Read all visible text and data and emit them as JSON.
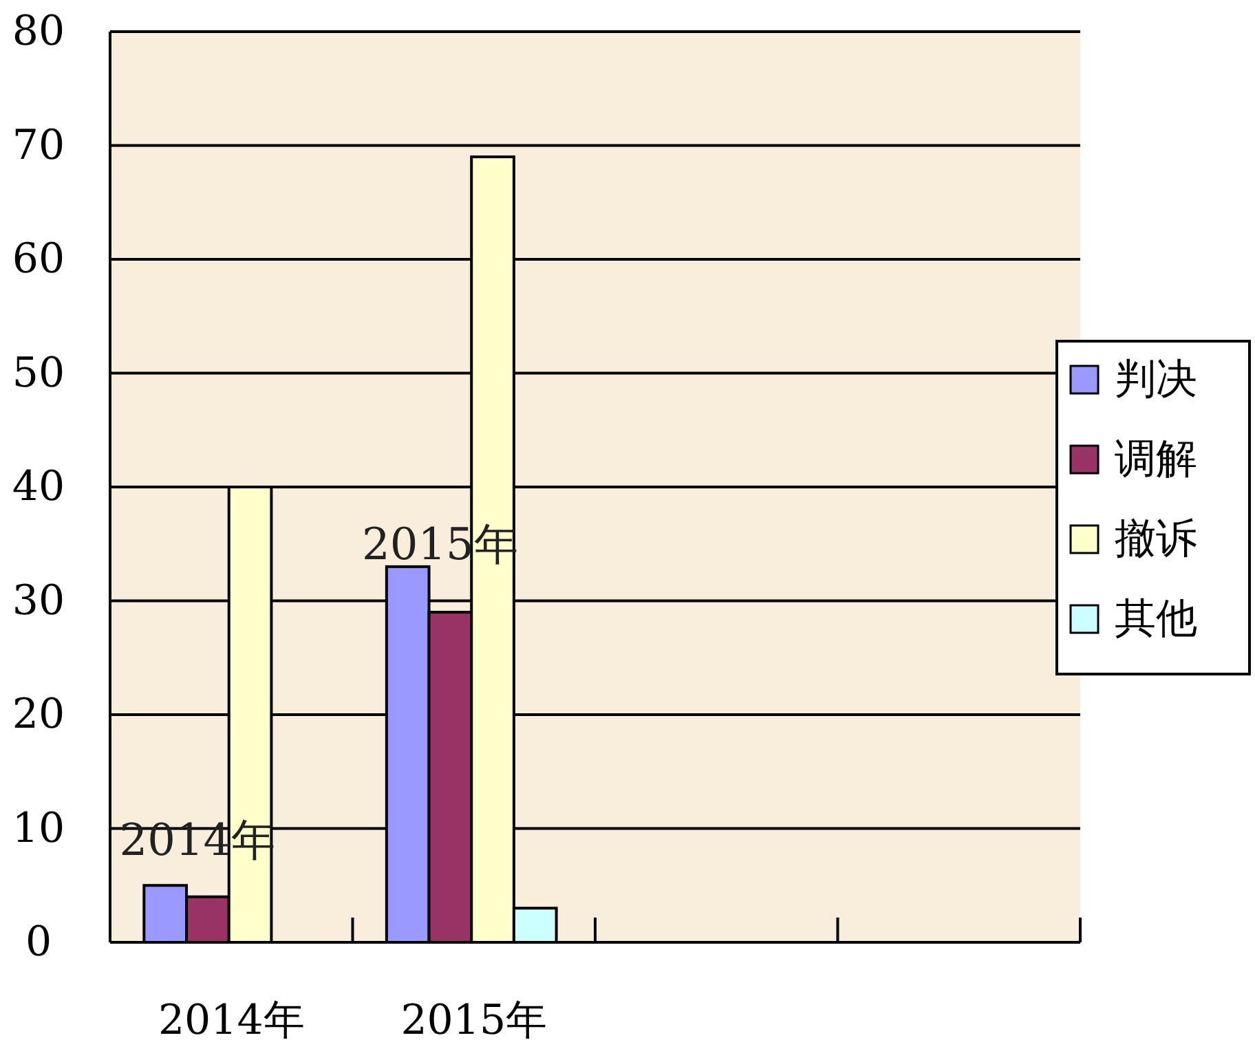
{
  "chart_data": {
    "type": "bar",
    "categories": [
      "2014年",
      "2015年",
      null,
      null
    ],
    "series": [
      {
        "name": "判决",
        "color": "#9999ff",
        "values": [
          5,
          33,
          null,
          null
        ]
      },
      {
        "name": "调解",
        "color": "#993366",
        "values": [
          4,
          29,
          null,
          null
        ]
      },
      {
        "name": "撤诉",
        "color": "#ffffcc",
        "values": [
          40,
          69,
          null,
          null
        ]
      },
      {
        "name": "其他",
        "color": "#ccffff",
        "values": [
          null,
          3,
          null,
          null
        ]
      }
    ],
    "ylim": [
      0,
      80
    ],
    "yticks": [
      0,
      10,
      20,
      30,
      40,
      50,
      60,
      70,
      80
    ],
    "grid": "y",
    "legend": "right",
    "annotations": [
      {
        "text": "2014年",
        "x": "2014年",
        "y": 9
      },
      {
        "text": "2015年",
        "x": "2015年",
        "y": 35
      }
    ]
  }
}
